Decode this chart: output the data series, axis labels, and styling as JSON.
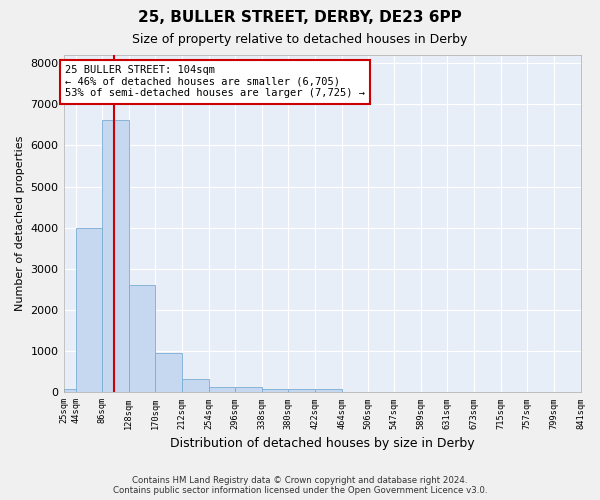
{
  "title": "25, BULLER STREET, DERBY, DE23 6PP",
  "subtitle": "Size of property relative to detached houses in Derby",
  "xlabel": "Distribution of detached houses by size in Derby",
  "ylabel": "Number of detached properties",
  "bin_edges": [
    25,
    44,
    86,
    128,
    170,
    212,
    254,
    296,
    338,
    380,
    422,
    464,
    506,
    547,
    589,
    631,
    673,
    715,
    757,
    799,
    841
  ],
  "bar_heights": [
    80,
    4000,
    6620,
    2620,
    950,
    320,
    130,
    130,
    70,
    70,
    70,
    0,
    0,
    0,
    0,
    0,
    0,
    0,
    0,
    0
  ],
  "bar_color": "#c5d8f0",
  "bar_edgecolor": "#7aadd4",
  "property_size": 104,
  "property_line_color": "#cc0000",
  "annotation_line1": "25 BULLER STREET: 104sqm",
  "annotation_line2": "← 46% of detached houses are smaller (6,705)",
  "annotation_line3": "53% of semi-detached houses are larger (7,725) →",
  "annotation_box_color": "#cc0000",
  "ylim": [
    0,
    8200
  ],
  "yticks": [
    0,
    1000,
    2000,
    3000,
    4000,
    5000,
    6000,
    7000,
    8000
  ],
  "background_color": "#e8eef8",
  "grid_color": "#ffffff",
  "footer_line1": "Contains HM Land Registry data © Crown copyright and database right 2024.",
  "footer_line2": "Contains public sector information licensed under the Open Government Licence v3.0.",
  "title_fontsize": 11,
  "subtitle_fontsize": 9
}
